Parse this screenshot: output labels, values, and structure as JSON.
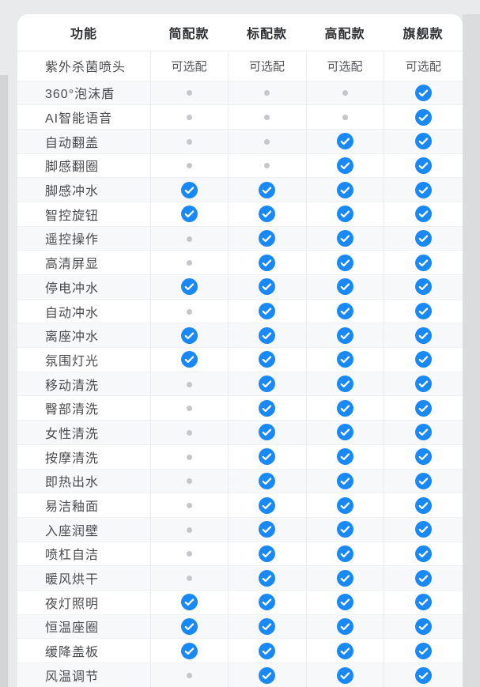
{
  "page": {
    "background": "#e9eaec",
    "gutter_right": "#dbdcde",
    "gutter_left": "#d2d4d6"
  },
  "colors": {
    "check_blue": "#1989f7",
    "dot_gray": "#c4c6c9",
    "stripe": "#f7f8f9",
    "header_text": "#2f3033"
  },
  "icons": {
    "available": "check-circle-icon",
    "unavailable": "dot-icon"
  },
  "table": {
    "columns": [
      "功能",
      "简配款",
      "标配款",
      "高配款",
      "旗舰款"
    ],
    "optional_row": {
      "label": "紫外杀菌喷头",
      "values": [
        "可选配",
        "可选配",
        "可选配",
        "可选配"
      ]
    },
    "feature_rows": [
      {
        "label": "360°泡沫盾",
        "availability": [
          false,
          false,
          false,
          true
        ]
      },
      {
        "label": "AI智能语音",
        "availability": [
          false,
          false,
          false,
          true
        ]
      },
      {
        "label": "自动翻盖",
        "availability": [
          false,
          false,
          true,
          true
        ]
      },
      {
        "label": "脚感翻圈",
        "availability": [
          false,
          false,
          true,
          true
        ]
      },
      {
        "label": "脚感冲水",
        "availability": [
          true,
          true,
          true,
          true
        ]
      },
      {
        "label": "智控旋钮",
        "availability": [
          true,
          true,
          true,
          true
        ]
      },
      {
        "label": "遥控操作",
        "availability": [
          false,
          true,
          true,
          true
        ]
      },
      {
        "label": "高清屏显",
        "availability": [
          false,
          true,
          true,
          true
        ]
      },
      {
        "label": "停电冲水",
        "availability": [
          true,
          true,
          true,
          true
        ]
      },
      {
        "label": "自动冲水",
        "availability": [
          false,
          true,
          true,
          true
        ]
      },
      {
        "label": "离座冲水",
        "availability": [
          true,
          true,
          true,
          true
        ]
      },
      {
        "label": "氛围灯光",
        "availability": [
          true,
          true,
          true,
          true
        ]
      },
      {
        "label": "移动清洗",
        "availability": [
          false,
          true,
          true,
          true
        ]
      },
      {
        "label": "臀部清洗",
        "availability": [
          false,
          true,
          true,
          true
        ]
      },
      {
        "label": "女性清洗",
        "availability": [
          false,
          true,
          true,
          true
        ]
      },
      {
        "label": "按摩清洗",
        "availability": [
          false,
          true,
          true,
          true
        ]
      },
      {
        "label": "即热出水",
        "availability": [
          false,
          true,
          true,
          true
        ]
      },
      {
        "label": "易洁釉面",
        "availability": [
          false,
          true,
          true,
          true
        ]
      },
      {
        "label": "入座润壁",
        "availability": [
          false,
          true,
          true,
          true
        ]
      },
      {
        "label": "喷杠自洁",
        "availability": [
          false,
          true,
          true,
          true
        ]
      },
      {
        "label": "暖风烘干",
        "availability": [
          false,
          true,
          true,
          true
        ]
      },
      {
        "label": "夜灯照明",
        "availability": [
          true,
          true,
          true,
          true
        ]
      },
      {
        "label": "恒温座圈",
        "availability": [
          true,
          true,
          true,
          true
        ]
      },
      {
        "label": "缓降盖板",
        "availability": [
          true,
          true,
          true,
          true
        ]
      },
      {
        "label": "风温调节",
        "availability": [
          false,
          true,
          true,
          true
        ]
      }
    ]
  }
}
